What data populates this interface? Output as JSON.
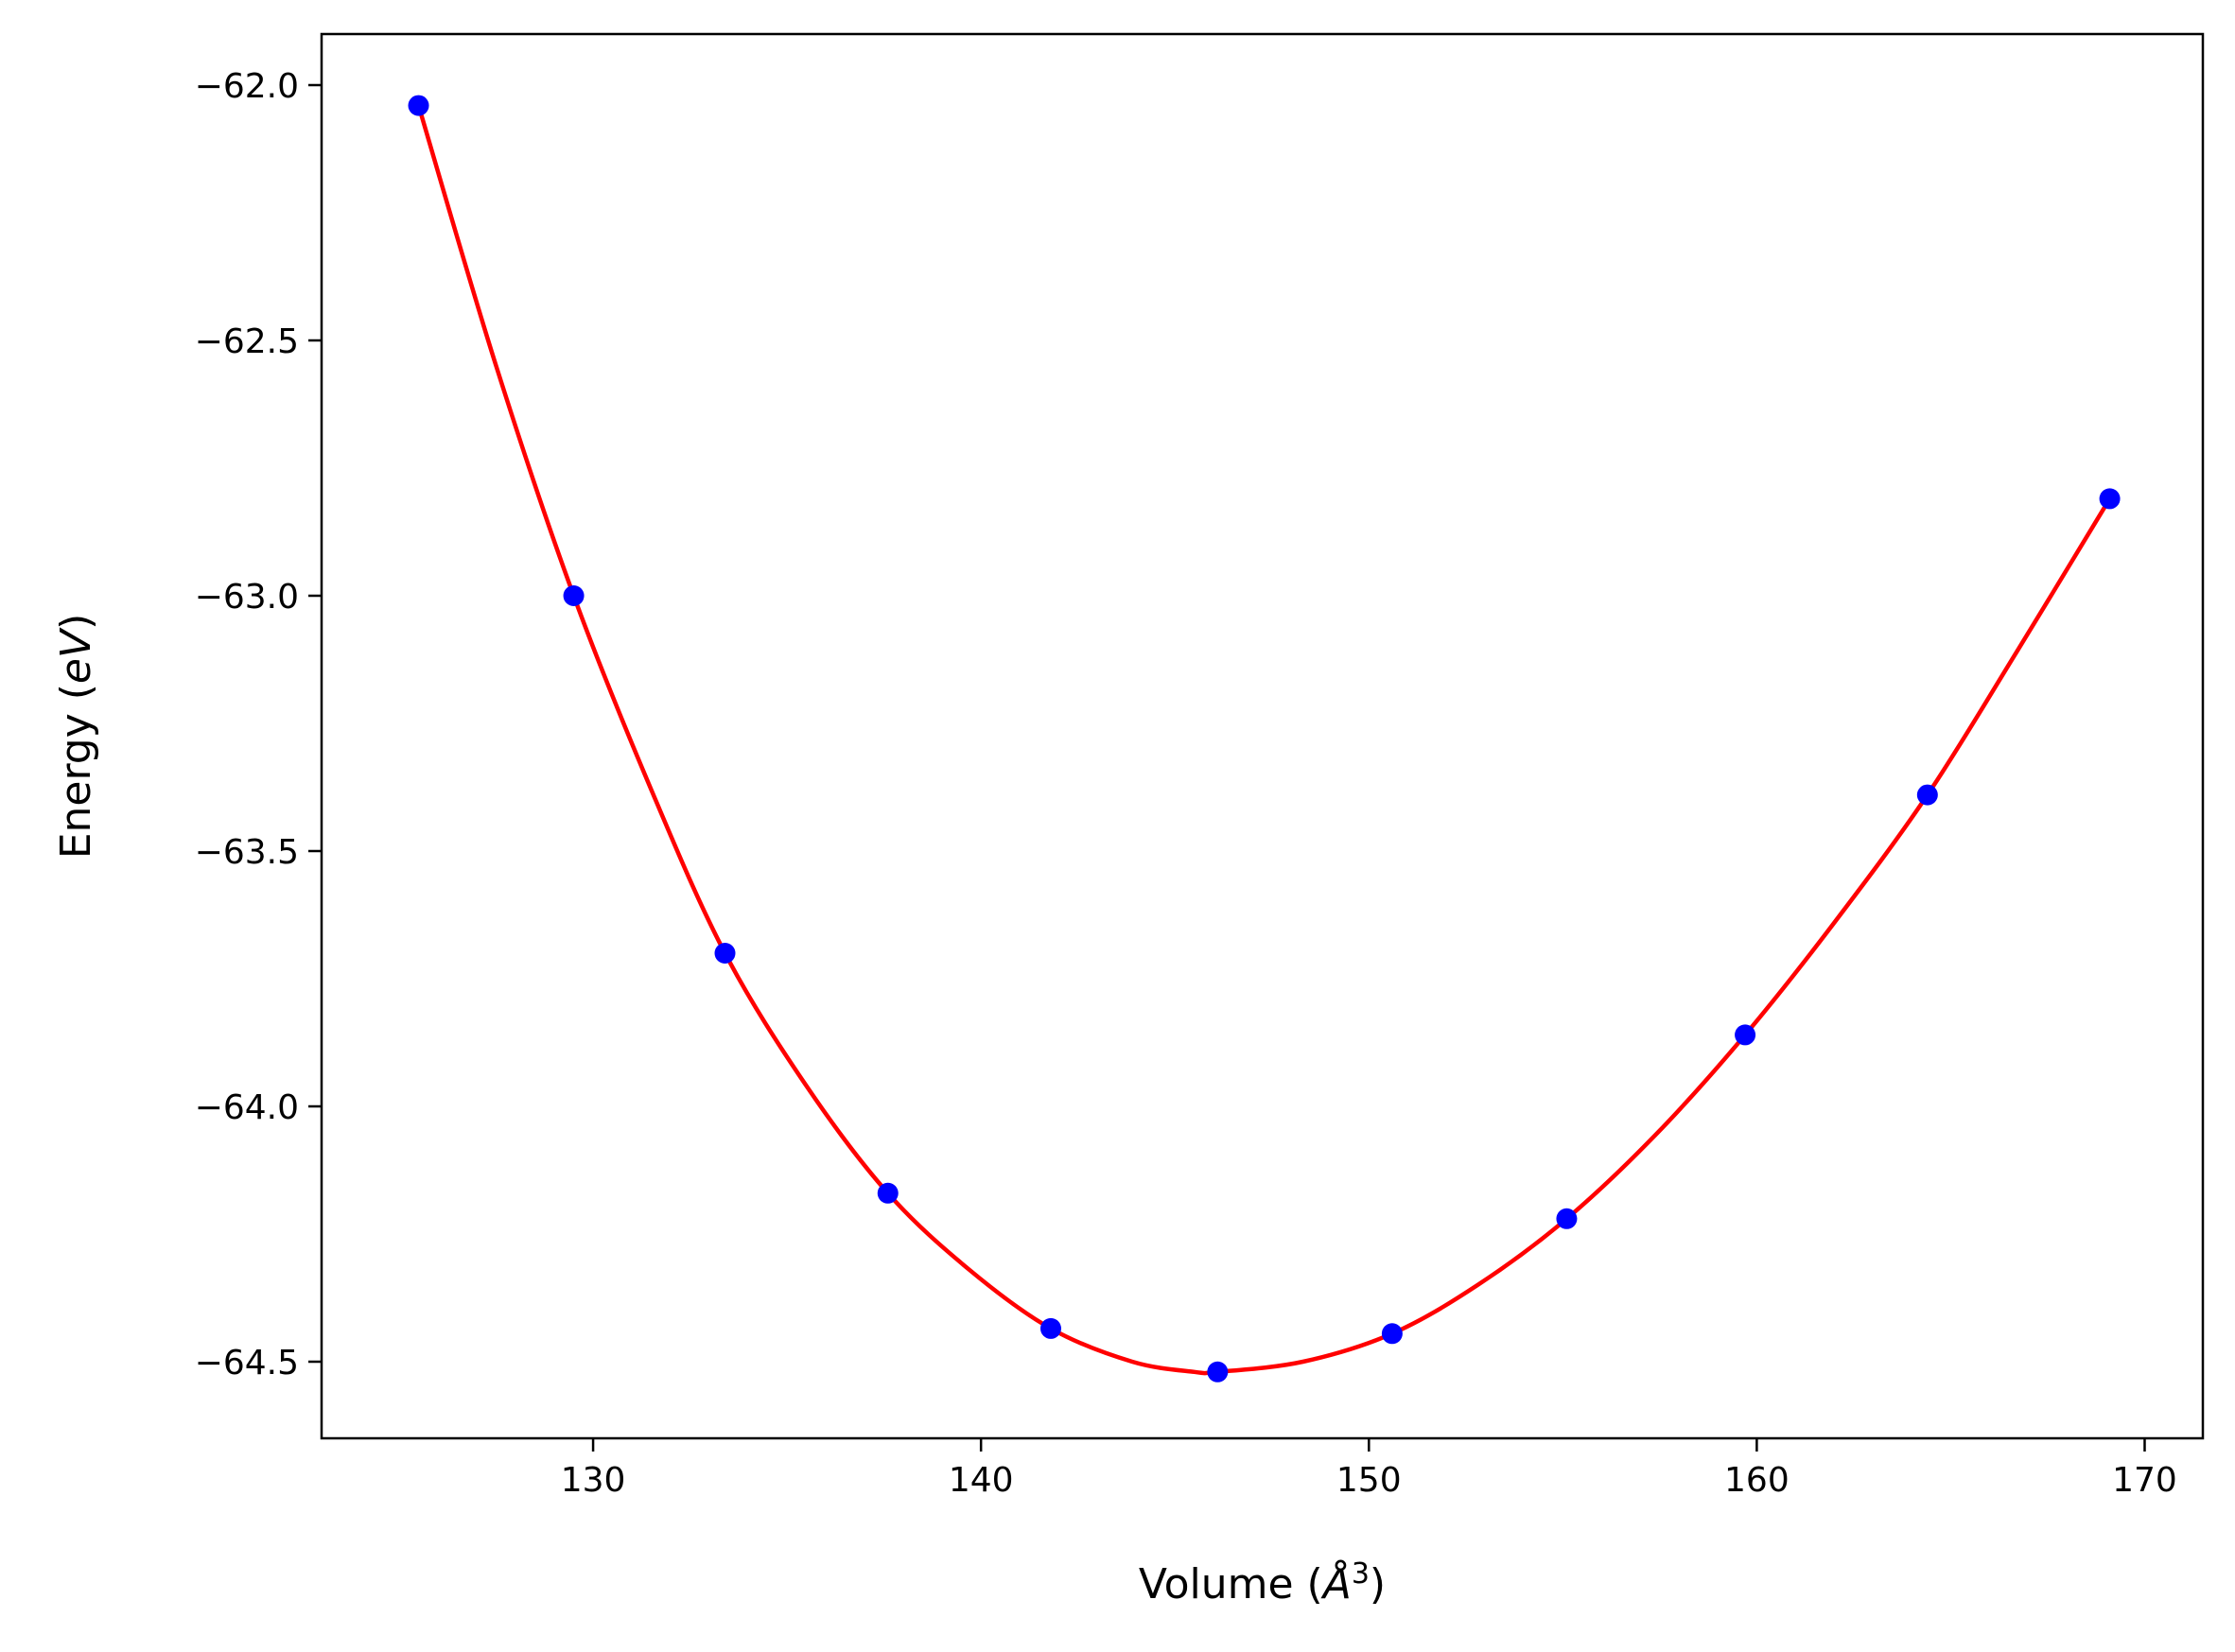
{
  "chart_data": {
    "type": "scatter",
    "xlabel": {
      "prefix": "Volume (",
      "symbol": "Å",
      "exponent": "3",
      "suffix": ")"
    },
    "ylabel": {
      "prefix": "Energy (",
      "unit": "eV",
      "suffix": ")"
    },
    "xlim": [
      123,
      171.5
    ],
    "ylim": [
      -64.65,
      -61.9
    ],
    "xticks": [
      130,
      140,
      150,
      160,
      170
    ],
    "xtick_labels": [
      "130",
      "140",
      "150",
      "160",
      "170"
    ],
    "yticks": [
      -62.0,
      -62.5,
      -63.0,
      -63.5,
      -64.0,
      -64.5
    ],
    "ytick_labels": [
      "−62.0",
      "−62.5",
      "−63.0",
      "−63.5",
      "−64.0",
      "−64.5"
    ],
    "grid": false,
    "series": [
      {
        "kind": "points",
        "color": "#0000ff",
        "x": [
          125.5,
          129.5,
          133.4,
          137.6,
          141.8,
          146.1,
          150.6,
          155.1,
          159.7,
          164.4,
          169.1
        ],
        "y": [
          -62.04,
          -63.0,
          -63.7,
          -64.17,
          -64.435,
          -64.52,
          -64.445,
          -64.22,
          -63.86,
          -63.39,
          -62.81
        ]
      },
      {
        "kind": "fit-curve",
        "color": "#ff0000",
        "x": [
          125.5,
          127.5,
          129.5,
          131.5,
          133.4,
          135.5,
          137.6,
          139.7,
          141.8,
          143.9,
          145.5,
          146.1,
          148.3,
          150.6,
          152.8,
          155.1,
          157.4,
          159.7,
          162.0,
          164.4,
          166.7,
          169.1
        ],
        "y": [
          -62.04,
          -62.55,
          -63.0,
          -63.38,
          -63.7,
          -63.96,
          -64.17,
          -64.32,
          -64.435,
          -64.5,
          -64.52,
          -64.52,
          -64.5,
          -64.445,
          -64.35,
          -64.22,
          -64.055,
          -63.86,
          -63.64,
          -63.39,
          -63.11,
          -62.81
        ]
      }
    ]
  }
}
